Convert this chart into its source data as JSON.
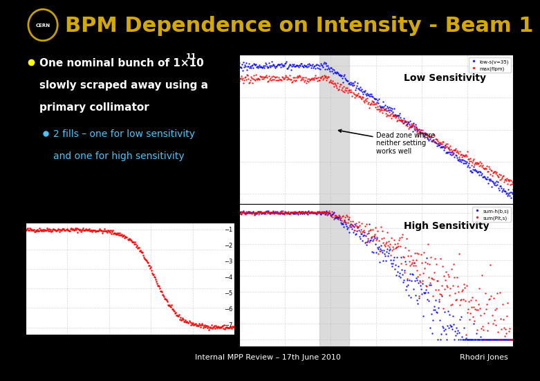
{
  "title": "BPM Dependence on Intensity - Beam 1",
  "title_color": "#D4A800",
  "bg_color": "#000000",
  "bullet_color": "#FFFF00",
  "sub_bullet_color": "#4FC3F7",
  "footer_left": "Internal MPP Review – 17th June 2010",
  "footer_right": "Rhodri Jones",
  "footer_color": "#FFFFFF",
  "low_label": "Low Sensitivity",
  "high_label": "High Sensitivity",
  "dead_zone_label": "Dead zone where\nneither setting\nworks well",
  "annotation_color": "#000000",
  "label_color": "#000000",
  "plot_bg": "#FFFFFF",
  "shaded_color": "#CCCCCC"
}
